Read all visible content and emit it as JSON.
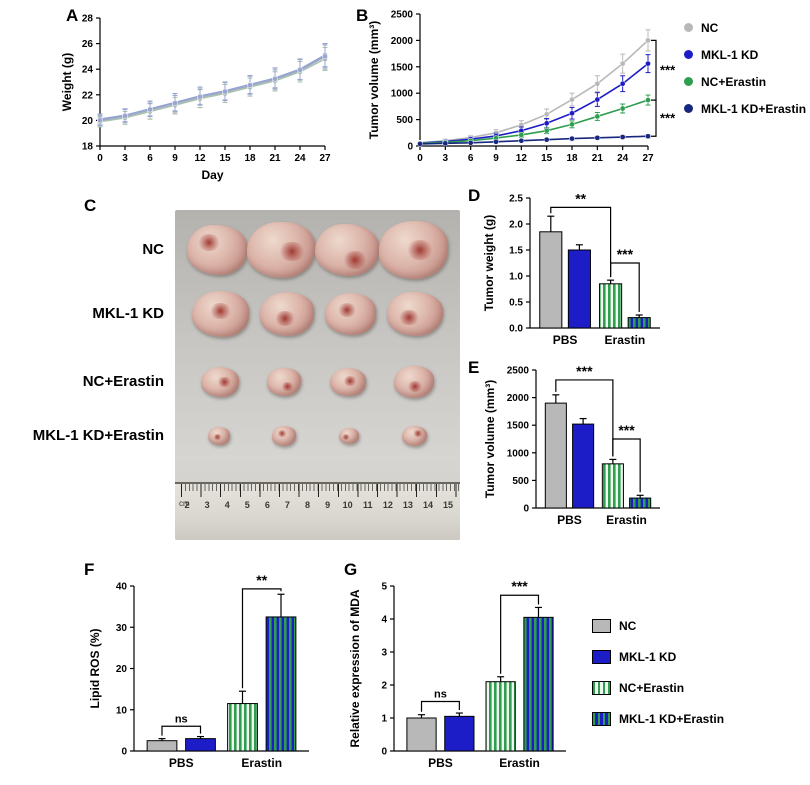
{
  "panel_letters": {
    "a": "A",
    "b": "B",
    "c": "C",
    "d": "D",
    "e": "E",
    "f": "F",
    "g": "G"
  },
  "colors": {
    "nc_gray": "#b8b8b8",
    "kd_blue": "#1d1dc8",
    "erastin_green": "#2f9e50",
    "kd_erastin_navy": "#18277e",
    "axis": "#000000"
  },
  "legend_b": {
    "items": [
      {
        "label": "NC",
        "color": "#b8b8b8"
      },
      {
        "label": "MKL-1 KD",
        "color": "#1d1dc8"
      },
      {
        "label": "NC+Erastin",
        "color": "#2f9e50"
      },
      {
        "label": "MKL-1 KD+Erastin",
        "color": "#18277e"
      }
    ]
  },
  "legend_g": {
    "items": [
      {
        "label": "NC",
        "fill": "solid-gray"
      },
      {
        "label": "MKL-1 KD",
        "fill": "solid-blue"
      },
      {
        "label": "NC+Erastin",
        "fill": "green-stripes"
      },
      {
        "label": "MKL-1 KD+Erastin",
        "fill": "blue-green-stripes"
      }
    ]
  },
  "photo": {
    "row_labels": [
      "NC",
      "MKL-1 KD",
      "NC+Erastin",
      "MKL-1 KD+Erastin"
    ],
    "blob_sizes": [
      62,
      54,
      38,
      24
    ],
    "ruler_unit": "cm",
    "ruler_numbers": [
      2,
      3,
      4,
      5,
      6,
      7,
      8,
      9,
      10,
      11,
      12,
      13,
      14,
      15
    ]
  },
  "chart_data": [
    {
      "id": "A",
      "type": "line",
      "title": "",
      "xlabel": "Day",
      "ylabel": "Weight (g)",
      "x": [
        0,
        3,
        6,
        9,
        12,
        15,
        18,
        21,
        24,
        27
      ],
      "ylim": [
        18,
        28
      ],
      "yticks": [
        "18",
        "20",
        "22",
        "24",
        "26",
        "28"
      ],
      "series": [
        {
          "name": "NC",
          "color": "#b9b9b9",
          "values": [
            20.0,
            20.3,
            20.8,
            21.3,
            21.8,
            22.2,
            22.7,
            23.2,
            23.9,
            25.0
          ],
          "errors": [
            0.5,
            0.6,
            0.7,
            0.8,
            0.8,
            0.8,
            0.8,
            0.9,
            0.9,
            1.0
          ]
        },
        {
          "name": "MKL-1 KD",
          "color": "#8f9fd0",
          "values": [
            20.1,
            20.4,
            20.9,
            21.4,
            21.9,
            22.3,
            22.8,
            23.3,
            24.0,
            25.1
          ],
          "errors": [
            0.4,
            0.5,
            0.6,
            0.7,
            0.7,
            0.7,
            0.7,
            0.8,
            0.8,
            0.9
          ]
        },
        {
          "name": "NC+Erastin",
          "color": "#a9c2b0",
          "values": [
            19.9,
            20.2,
            20.7,
            21.2,
            21.7,
            22.1,
            22.6,
            23.1,
            23.8,
            24.8
          ],
          "errors": [
            0.4,
            0.5,
            0.6,
            0.6,
            0.7,
            0.7,
            0.7,
            0.7,
            0.8,
            0.9
          ]
        },
        {
          "name": "MKL-1 KD+Erastin",
          "color": "#9aa6cf",
          "values": [
            20.0,
            20.35,
            20.85,
            21.35,
            21.85,
            22.25,
            22.75,
            23.25,
            23.95,
            25.0
          ],
          "errors": [
            0.4,
            0.5,
            0.5,
            0.6,
            0.6,
            0.7,
            0.7,
            0.7,
            0.8,
            0.9
          ]
        }
      ],
      "legend_position": "none",
      "grid": false
    },
    {
      "id": "B",
      "type": "line",
      "title": "",
      "xlabel": "",
      "ylabel": "Tumor volume (mm³)",
      "x": [
        0,
        3,
        6,
        9,
        12,
        15,
        18,
        21,
        24,
        27
      ],
      "ylim": [
        0,
        2500
      ],
      "yticks": [
        "0",
        "500",
        "1000",
        "1500",
        "2000",
        "2500"
      ],
      "series": [
        {
          "name": "NC",
          "color": "#b8b8b8",
          "values": [
            60,
            100,
            160,
            250,
            400,
            600,
            880,
            1180,
            1560,
            2000
          ],
          "errors": [
            20,
            30,
            40,
            60,
            80,
            100,
            120,
            150,
            180,
            200
          ]
        },
        {
          "name": "MKL-1 KD",
          "color": "#1d1dc8",
          "values": [
            55,
            85,
            130,
            190,
            290,
            430,
            620,
            880,
            1180,
            1560
          ],
          "errors": [
            20,
            25,
            35,
            50,
            70,
            90,
            110,
            130,
            150,
            170
          ]
        },
        {
          "name": "NC+Erastin",
          "color": "#2f9e50",
          "values": [
            50,
            70,
            100,
            150,
            210,
            290,
            410,
            560,
            710,
            870
          ],
          "errors": [
            15,
            20,
            25,
            35,
            45,
            55,
            65,
            75,
            85,
            95
          ]
        },
        {
          "name": "MKL-1 KD+Erastin",
          "color": "#18277e",
          "values": [
            40,
            50,
            60,
            80,
            100,
            120,
            140,
            155,
            170,
            185
          ],
          "errors": [
            10,
            12,
            14,
            16,
            18,
            20,
            22,
            24,
            26,
            28
          ]
        }
      ],
      "annotations": [
        {
          "label": "***",
          "y_from": 2000,
          "y_to": 870
        },
        {
          "label": "***",
          "y_from": 870,
          "y_to": 185
        }
      ],
      "legend_position": "right",
      "grid": false
    },
    {
      "id": "D",
      "type": "bar",
      "title": "",
      "xlabel": "",
      "ylabel": "Tumor weight (g)",
      "categories": [
        "PBS",
        "Erastin"
      ],
      "bars": [
        {
          "name": "NC",
          "group": "PBS",
          "fill": "solid-gray",
          "value": 1.85,
          "error": 0.3
        },
        {
          "name": "MKL-1 KD",
          "group": "PBS",
          "fill": "solid-blue",
          "value": 1.5,
          "error": 0.1
        },
        {
          "name": "NC+Erastin",
          "group": "Erastin",
          "fill": "green-stripes",
          "value": 0.85,
          "error": 0.07
        },
        {
          "name": "MKL-1 KD+Erastin",
          "group": "Erastin",
          "fill": "blue-green-stripes",
          "value": 0.2,
          "error": 0.05
        }
      ],
      "ylim": [
        0,
        2.5
      ],
      "yticks": [
        "0.0",
        "0.5",
        "1.0",
        "1.5",
        "2.0",
        "2.5"
      ],
      "annotations": [
        {
          "label": "**",
          "from": 0,
          "to": 2,
          "y": 2.32
        },
        {
          "label": "***",
          "from": 2,
          "to": 3,
          "y": 1.25
        }
      ],
      "grid": false
    },
    {
      "id": "E",
      "type": "bar",
      "title": "",
      "xlabel": "",
      "ylabel": "Tumor volume (mm³)",
      "categories": [
        "PBS",
        "Erastin"
      ],
      "bars": [
        {
          "name": "NC",
          "group": "PBS",
          "fill": "solid-gray",
          "value": 1900,
          "error": 150
        },
        {
          "name": "MKL-1 KD",
          "group": "PBS",
          "fill": "solid-blue",
          "value": 1520,
          "error": 100
        },
        {
          "name": "NC+Erastin",
          "group": "Erastin",
          "fill": "green-stripes",
          "value": 800,
          "error": 80
        },
        {
          "name": "MKL-1 KD+Erastin",
          "group": "Erastin",
          "fill": "blue-green-stripes",
          "value": 180,
          "error": 50
        }
      ],
      "ylim": [
        0,
        2500
      ],
      "yticks": [
        "0",
        "500",
        "1000",
        "1500",
        "2000",
        "2500"
      ],
      "annotations": [
        {
          "label": "***",
          "from": 0,
          "to": 2,
          "y": 2320
        },
        {
          "label": "***",
          "from": 2,
          "to": 3,
          "y": 1250
        }
      ],
      "grid": false
    },
    {
      "id": "F",
      "type": "bar",
      "title": "",
      "xlabel": "",
      "ylabel": "Lipid ROS (%)",
      "categories": [
        "PBS",
        "Erastin"
      ],
      "bars": [
        {
          "name": "NC",
          "group": "PBS",
          "fill": "solid-gray",
          "value": 2.5,
          "error": 0.5
        },
        {
          "name": "MKL-1 KD",
          "group": "PBS",
          "fill": "solid-blue",
          "value": 3.0,
          "error": 0.5
        },
        {
          "name": "NC+Erastin",
          "group": "Erastin",
          "fill": "green-stripes",
          "value": 11.5,
          "error": 3.0
        },
        {
          "name": "MKL-1 KD+Erastin",
          "group": "Erastin",
          "fill": "blue-green-stripes",
          "value": 32.5,
          "error": 5.5
        }
      ],
      "ylim": [
        0,
        40
      ],
      "yticks": [
        "0",
        "10",
        "20",
        "30",
        "40"
      ],
      "annotations": [
        {
          "label": "ns",
          "from": 0,
          "to": 1,
          "y": 6
        },
        {
          "label": "**",
          "from": 2,
          "to": 3,
          "y": 39.3
        }
      ],
      "grid": false
    },
    {
      "id": "G",
      "type": "bar",
      "title": "",
      "xlabel": "",
      "ylabel": "Relative expression of MDA",
      "categories": [
        "PBS",
        "Erastin"
      ],
      "bars": [
        {
          "name": "NC",
          "group": "PBS",
          "fill": "solid-gray",
          "value": 1.0,
          "error": 0.1
        },
        {
          "name": "MKL-1 KD",
          "group": "PBS",
          "fill": "solid-blue",
          "value": 1.05,
          "error": 0.1
        },
        {
          "name": "NC+Erastin",
          "group": "Erastin",
          "fill": "green-stripes",
          "value": 2.1,
          "error": 0.15
        },
        {
          "name": "MKL-1 KD+Erastin",
          "group": "Erastin",
          "fill": "blue-green-stripes",
          "value": 4.05,
          "error": 0.3
        }
      ],
      "ylim": [
        0,
        5
      ],
      "yticks": [
        "0",
        "1",
        "2",
        "3",
        "4",
        "5"
      ],
      "annotations": [
        {
          "label": "ns",
          "from": 0,
          "to": 1,
          "y": 1.5
        },
        {
          "label": "***",
          "from": 2,
          "to": 3,
          "y": 4.72
        }
      ],
      "grid": false
    }
  ]
}
